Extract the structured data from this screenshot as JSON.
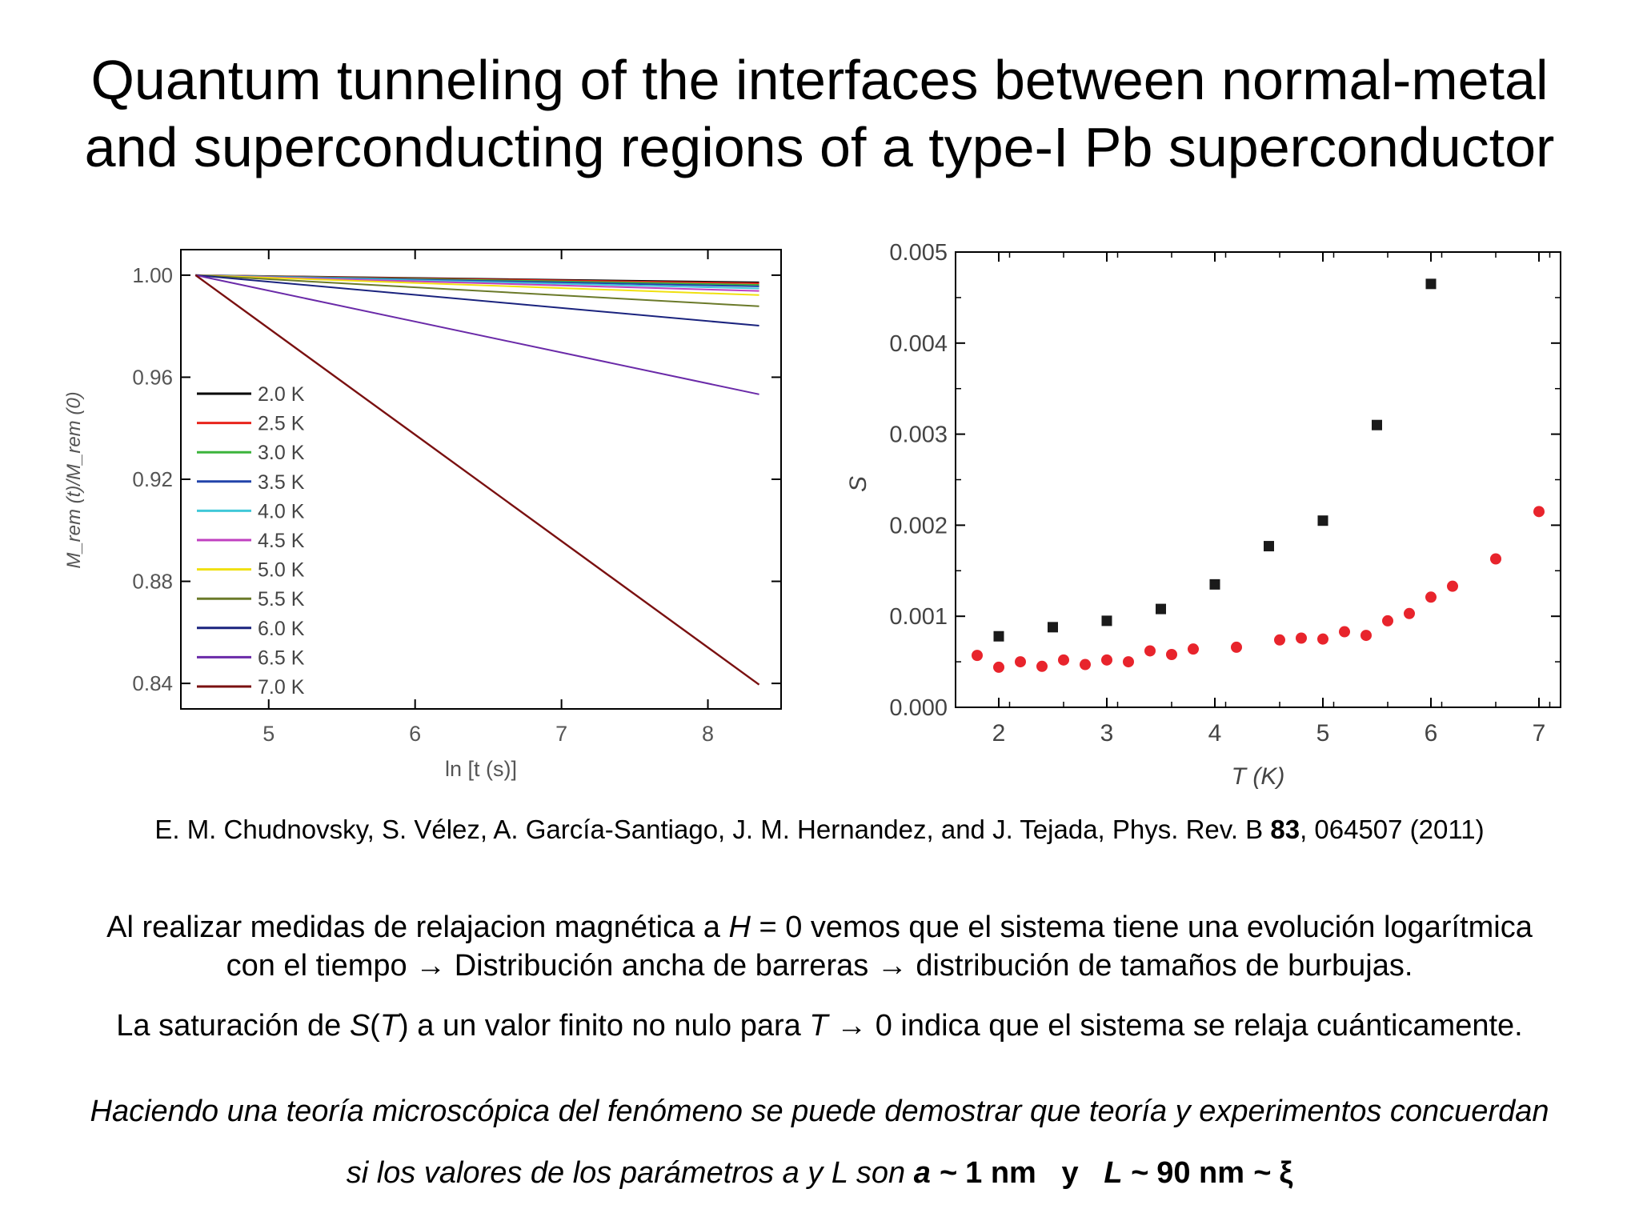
{
  "title": {
    "line1": "Quantum tunneling of the interfaces between normal-metal",
    "line2": "and superconducting regions of a type-I Pb superconductor"
  },
  "reference": {
    "authors": "E. M. Chudnovsky, S. Vélez, A. García-Santiago, J. M. Hernandez, and J. Tejada, Phys. Rev. B ",
    "volume": "83",
    "pages": ", 064507 (2011)"
  },
  "text": {
    "p1_a": "Al realizar medidas de relajacion magnética a ",
    "p1_H": "H",
    "p1_b": " = 0 vemos que el sistema tiene una evolución logarítmica",
    "p1_c": "con el tiempo → Distribución ancha de barreras → distribución de tamaños de burbujas.",
    "p2_a": "La saturación de ",
    "p2_S": "S",
    "p2_b": "(",
    "p2_T": "T",
    "p2_c": ") a un valor finito no nulo para ",
    "p2_T2": "T",
    "p2_d": " → 0 indica que el sistema se relaja cuánticamente.",
    "p3": "Haciendo una teoría microscópica del fenómeno se puede demostrar que teoría y experimentos concuerdan",
    "p4_a": "si los valores de los parámetros a y L son ",
    "p4_a_sym": "a",
    "p4_tilde1": " ~ ",
    "p4_val1": "1 nm",
    "p4_y": "y",
    "p4_L_sym": "L",
    "p4_tilde2": " ~ ",
    "p4_val2": "90 nm",
    "p4_tilde3": " ~ ",
    "p4_xi": "ξ"
  },
  "chart_data": [
    {
      "type": "line",
      "title": "",
      "xlabel": "ln [t (s)]",
      "ylabel": "M_rem (t)/M_rem (0)",
      "xlim": [
        4.4,
        8.5
      ],
      "ylim": [
        0.83,
        1.01
      ],
      "xticks": [
        5,
        6,
        7,
        8
      ],
      "yticks": [
        0.84,
        0.88,
        0.92,
        0.96,
        1.0
      ],
      "ytick_labels": [
        "0.84",
        "0.88",
        "0.92",
        "0.96",
        "1.00"
      ],
      "legend_position": "bottom-left",
      "x_start": 4.5,
      "x_end": 8.35,
      "series": [
        {
          "name": "2.0 K",
          "color": "#000000",
          "y_start": 1.0,
          "y_end": 0.9972
        },
        {
          "name": "2.5 K",
          "color": "#e8241c",
          "y_start": 1.0,
          "y_end": 0.9968
        },
        {
          "name": "3.0 K",
          "color": "#3cb43c",
          "y_start": 1.0,
          "y_end": 0.9962
        },
        {
          "name": "3.5 K",
          "color": "#2244aa",
          "y_start": 1.0,
          "y_end": 0.9956
        },
        {
          "name": "4.0 K",
          "color": "#40c8d8",
          "y_start": 1.0,
          "y_end": 0.9948
        },
        {
          "name": "4.5 K",
          "color": "#c040c0",
          "y_start": 1.0,
          "y_end": 0.9938
        },
        {
          "name": "5.0 K",
          "color": "#f0e010",
          "y_start": 1.0,
          "y_end": 0.9922
        },
        {
          "name": "5.5 K",
          "color": "#6b7a2a",
          "y_start": 1.0,
          "y_end": 0.9878
        },
        {
          "name": "6.0 K",
          "color": "#1a237e",
          "y_start": 1.0,
          "y_end": 0.9802
        },
        {
          "name": "6.5 K",
          "color": "#6a2aa8",
          "y_start": 1.0,
          "y_end": 0.9533
        },
        {
          "name": "7.0 K",
          "color": "#7a1010",
          "y_start": 1.0,
          "y_end": 0.8395
        }
      ]
    },
    {
      "type": "scatter",
      "title": "",
      "xlabel": "T (K)",
      "ylabel": "S",
      "xlim": [
        1.6,
        7.2
      ],
      "ylim": [
        0.0,
        0.005
      ],
      "xticks": [
        2,
        3,
        4,
        5,
        6,
        7
      ],
      "yticks": [
        0.0,
        0.001,
        0.002,
        0.003,
        0.004,
        0.005
      ],
      "ytick_labels": [
        "0.000",
        "0.001",
        "0.002",
        "0.003",
        "0.004",
        "0.005"
      ],
      "series": [
        {
          "marker": "square",
          "color": "#1a1a1a",
          "x": [
            2.0,
            2.5,
            3.0,
            3.5,
            4.0,
            4.5,
            5.0,
            5.5,
            6.0
          ],
          "y": [
            0.00078,
            0.00088,
            0.00095,
            0.00108,
            0.00135,
            0.00177,
            0.00205,
            0.0031,
            0.00465
          ]
        },
        {
          "marker": "circle",
          "color": "#e8242c",
          "x": [
            1.8,
            2.0,
            2.2,
            2.4,
            2.6,
            2.8,
            3.0,
            3.2,
            3.4,
            3.6,
            3.8,
            4.2,
            4.6,
            4.8,
            5.0,
            5.2,
            5.4,
            5.6,
            5.8,
            6.0,
            6.2,
            6.6,
            7.0
          ],
          "y": [
            0.00057,
            0.00044,
            0.0005,
            0.00045,
            0.00052,
            0.00047,
            0.00052,
            0.0005,
            0.00062,
            0.00058,
            0.00064,
            0.00066,
            0.00074,
            0.00076,
            0.00075,
            0.00083,
            0.00079,
            0.00095,
            0.00103,
            0.00121,
            0.00133,
            0.00163,
            0.00215
          ]
        }
      ]
    }
  ]
}
